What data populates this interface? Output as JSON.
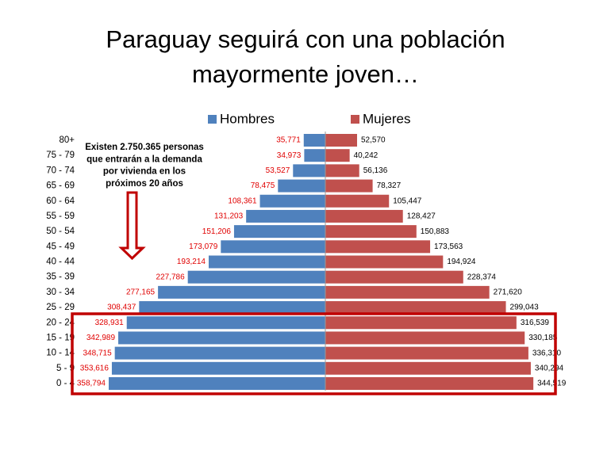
{
  "chart_data": {
    "type": "pyramid",
    "title": "Paraguay seguirá con una población mayormente joven…",
    "annotation": [
      "Existen 2.750.365 personas",
      "que entrarán a la demanda",
      "por vivienda en los",
      "próximos 20 años"
    ],
    "categories": [
      "80+",
      "75 - 79",
      "70 - 74",
      "65 - 69",
      "60 - 64",
      "55 - 59",
      "50 - 54",
      "45 - 49",
      "40 - 44",
      "35 - 39",
      "30 - 34",
      "25 - 29",
      "20 - 24",
      "15 - 19",
      "10 - 14",
      "5 - 9",
      "0 - 4"
    ],
    "series": [
      {
        "name": "Hombres",
        "color": "#4f81bd",
        "label_color": "#e00000",
        "side": "left",
        "values": [
          35771,
          34973,
          53527,
          78475,
          108361,
          131203,
          151206,
          173079,
          193214,
          227786,
          277165,
          308437,
          328931,
          342989,
          348715,
          353616,
          358794
        ],
        "value_labels": [
          "35,771",
          "34,973",
          "53,527",
          "78,475",
          "108,361",
          "131,203",
          "151,206",
          "173,079",
          "193,214",
          "227,786",
          "277,165",
          "308,437",
          "328,931",
          "342,989",
          "348,715",
          "353,616",
          "358,794"
        ]
      },
      {
        "name": "Mujeres",
        "color": "#c0504d",
        "label_color": "#000000",
        "side": "right",
        "values": [
          52570,
          40242,
          56136,
          78327,
          105447,
          128427,
          150883,
          173563,
          194924,
          228374,
          271620,
          299043,
          316539,
          330185,
          336310,
          340294,
          344519
        ],
        "value_labels": [
          "52,570",
          "40,242",
          "56,136",
          "78,327",
          "105,447",
          "128,427",
          "150,883",
          "173,563",
          "194,924",
          "228,374",
          "271,620",
          "299,043",
          "316,539",
          "330,185",
          "336,310",
          "340,294",
          "344,519"
        ]
      }
    ],
    "legend": "top"
  }
}
